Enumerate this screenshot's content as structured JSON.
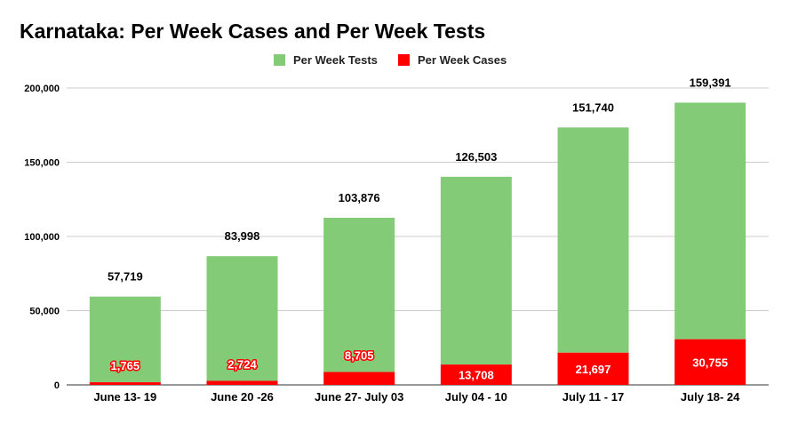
{
  "chart_data": {
    "type": "bar",
    "stacked": true,
    "title": "Karnataka: Per Week Cases and Per Week Tests",
    "xlabel": "",
    "ylabel": "",
    "ylim": [
      0,
      200000
    ],
    "yticks": [
      0,
      50000,
      100000,
      150000,
      200000
    ],
    "ytick_labels": [
      "0",
      "50,000",
      "100,000",
      "150,000",
      "200,000"
    ],
    "grid": true,
    "legend_position": "top",
    "categories": [
      "June 13- 19",
      "June 20 -26",
      "June 27- July 03",
      "July 04 - 10",
      "July 11 - 17",
      "July 18- 24"
    ],
    "series": [
      {
        "name": "Per Week Tests",
        "color": "#84cb78",
        "values": [
          57719,
          83998,
          103876,
          126503,
          151740,
          159391
        ],
        "labels": [
          "57,719",
          "83,998",
          "103,876",
          "126,503",
          "151,740",
          "159,391"
        ]
      },
      {
        "name": "Per Week Cases",
        "color": "#ff0000",
        "values": [
          1765,
          2724,
          8705,
          13708,
          21697,
          30755
        ],
        "labels": [
          "1,765",
          "2,724",
          "8,705",
          "13,708",
          "21,697",
          "30,755"
        ]
      }
    ],
    "stack_order": [
      "Per Week Cases",
      "Per Week Tests"
    ],
    "axis_color": "#333333",
    "grid_color": "#cccccc"
  }
}
